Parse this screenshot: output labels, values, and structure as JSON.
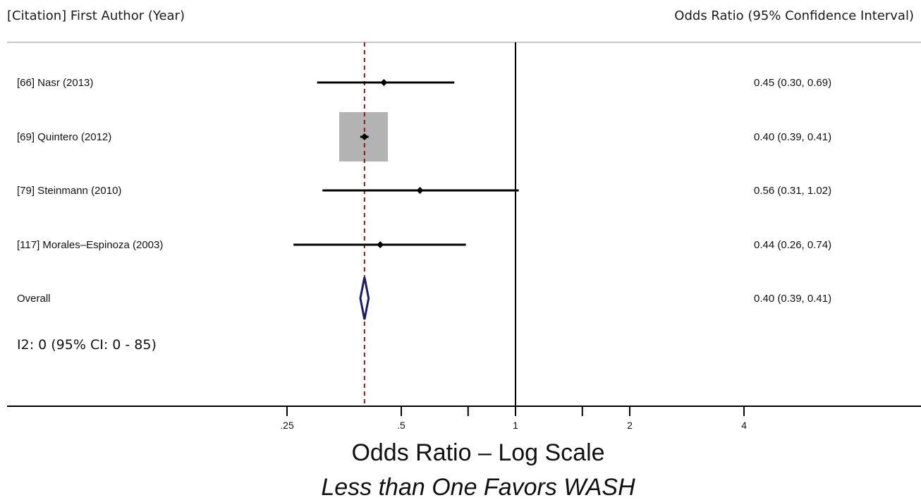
{
  "chart_data": {
    "type": "forest",
    "header_left": "[Citation] First Author (Year)",
    "header_right": "Odds Ratio (95% Confidence Interval)",
    "studies": [
      {
        "label": "[66] Nasr (2013)",
        "or": 0.45,
        "lo": 0.3,
        "hi": 0.69,
        "ci_text": "0.45 (0.30, 0.69)",
        "weight_box": false
      },
      {
        "label": "[69] Quintero (2012)",
        "or": 0.4,
        "lo": 0.39,
        "hi": 0.41,
        "ci_text": "0.40 (0.39, 0.41)",
        "weight_box": true
      },
      {
        "label": "[79] Steinmann (2010)",
        "or": 0.56,
        "lo": 0.31,
        "hi": 1.02,
        "ci_text": "0.56 (0.31, 1.02)",
        "weight_box": false
      },
      {
        "label": "[117] Morales–Espinoza (2003)",
        "or": 0.44,
        "lo": 0.26,
        "hi": 0.74,
        "ci_text": "0.44 (0.26, 0.74)",
        "weight_box": false
      }
    ],
    "overall": {
      "label": "Overall",
      "or": 0.4,
      "lo": 0.39,
      "hi": 0.41,
      "ci_text": "0.40 (0.39, 0.41)"
    },
    "heterogeneity": "I2: 0 (95% CI: 0 - 85)",
    "x_scale": "log",
    "x_ticks": [
      {
        "value": 0.25,
        "label": ".25"
      },
      {
        "value": 0.5,
        "label": ".5"
      },
      {
        "value": 0.75,
        "label": ""
      },
      {
        "value": 1,
        "label": "1"
      },
      {
        "value": 1.5,
        "label": ""
      },
      {
        "value": 2,
        "label": "2"
      },
      {
        "value": 4,
        "label": "4"
      }
    ],
    "reference_value": 1,
    "xlabel": "Odds Ratio – Log Scale",
    "xsublabel": "Less than One Favors WASH",
    "colors": {
      "ci_line": "#000000",
      "weight_box": "#b3b3b3",
      "overall_diamond": "#1a1a6e",
      "overall_line": "#8b1a1a",
      "header_rule": "#c8c8c8"
    }
  }
}
